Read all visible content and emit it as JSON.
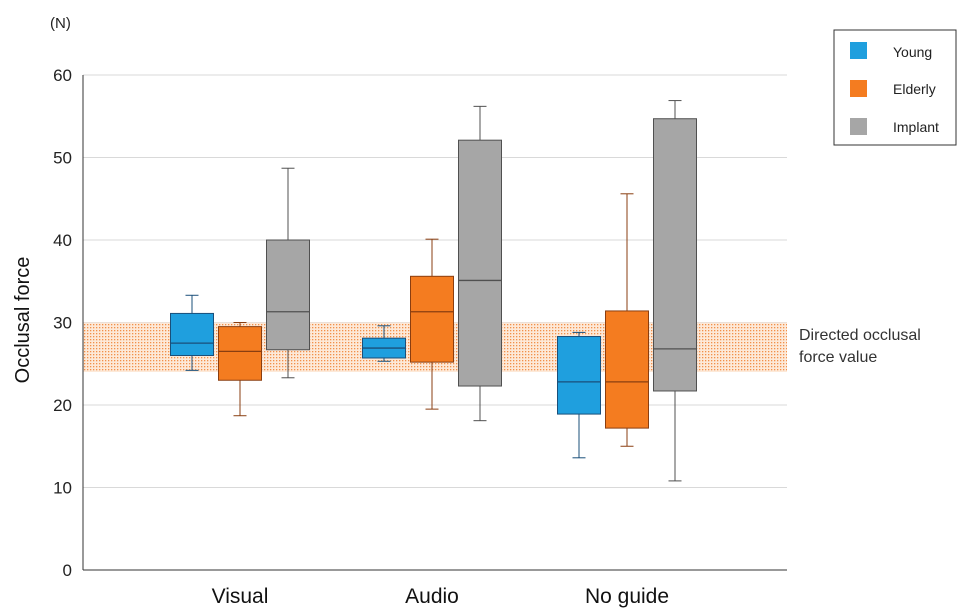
{
  "chart_data": {
    "type": "box",
    "unit": "(N)",
    "ylabel": "Occlusal force",
    "ylim": [
      0,
      60
    ],
    "yticks": [
      0,
      10,
      20,
      30,
      40,
      50,
      60
    ],
    "grid": true,
    "legend_position": "top-right",
    "categories": [
      "Visual",
      "Audio",
      "No guide"
    ],
    "series": [
      {
        "name": "Young",
        "color": "#1f9fde",
        "stroke": "#1a4f7a",
        "boxes": [
          {
            "min": 24.2,
            "q1": 26.0,
            "median": 27.5,
            "q3": 31.1,
            "max": 33.3
          },
          {
            "min": 25.3,
            "q1": 25.7,
            "median": 26.9,
            "q3": 28.1,
            "max": 29.6
          },
          {
            "min": 13.6,
            "q1": 18.9,
            "median": 22.8,
            "q3": 28.3,
            "max": 28.8
          }
        ]
      },
      {
        "name": "Elderly",
        "color": "#f47c20",
        "stroke": "#8a3e10",
        "boxes": [
          {
            "min": 18.7,
            "q1": 23.0,
            "median": 26.5,
            "q3": 29.5,
            "max": 30.0
          },
          {
            "min": 19.5,
            "q1": 25.2,
            "median": 31.3,
            "q3": 35.6,
            "max": 40.1
          },
          {
            "min": 15.0,
            "q1": 17.2,
            "median": 22.8,
            "q3": 31.4,
            "max": 45.6
          }
        ]
      },
      {
        "name": "Implant",
        "color": "#a6a6a6",
        "stroke": "#505050",
        "boxes": [
          {
            "min": 23.3,
            "q1": 26.7,
            "median": 31.3,
            "q3": 40.0,
            "max": 48.7
          },
          {
            "min": 18.1,
            "q1": 22.3,
            "median": 35.1,
            "q3": 52.1,
            "max": 56.2
          },
          {
            "min": 10.8,
            "q1": 21.7,
            "median": 26.8,
            "q3": 54.7,
            "max": 56.9
          }
        ]
      }
    ],
    "reference_band": {
      "from": 24.0,
      "to": 30.0,
      "color": "#f47c20",
      "label_lines": [
        "Directed occlusal",
        "force value"
      ]
    }
  }
}
